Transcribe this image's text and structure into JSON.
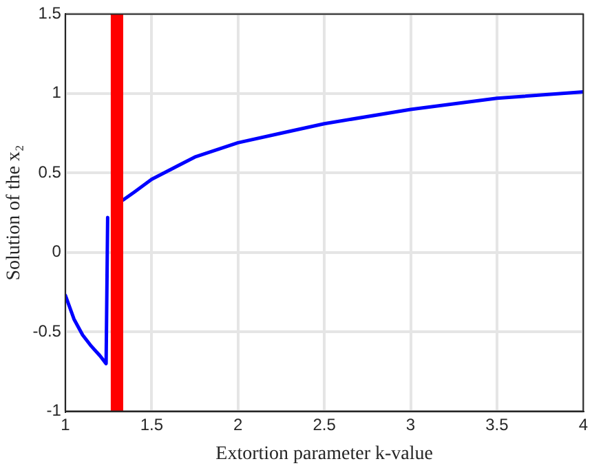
{
  "chart_data": {
    "type": "line",
    "xlabel": "Extortion parameter k-value",
    "ylabel": "Solution of the x₂",
    "series": [
      {
        "color": "#0000ff",
        "x": [
          1,
          1.05,
          1.1,
          1.15,
          1.2,
          1.236,
          1.245,
          1.26,
          1.335,
          1.4,
          1.5,
          1.75,
          2,
          2.25,
          2.5,
          3,
          3.5,
          4
        ],
        "values": [
          -0.27,
          -0.42,
          -0.52,
          -0.59,
          -0.65,
          -0.7,
          0.22,
          null,
          0.33,
          0.38,
          0.46,
          0.6,
          0.69,
          0.75,
          0.81,
          0.9,
          0.97,
          1.01
        ]
      }
    ],
    "xlim": [
      1,
      4
    ],
    "xticks": [
      1,
      1.5,
      2,
      2.5,
      3,
      3.5,
      4
    ],
    "ylim": [
      -1,
      1.5
    ],
    "yticks": [
      -1,
      -0.5,
      0,
      0.5,
      1,
      1.5
    ],
    "bands": [
      {
        "axis": "x",
        "from": 1.263,
        "to": 1.335,
        "color": "#ff0000"
      }
    ],
    "grid": true,
    "legend": false,
    "marker": "none",
    "line_style": "solid"
  }
}
